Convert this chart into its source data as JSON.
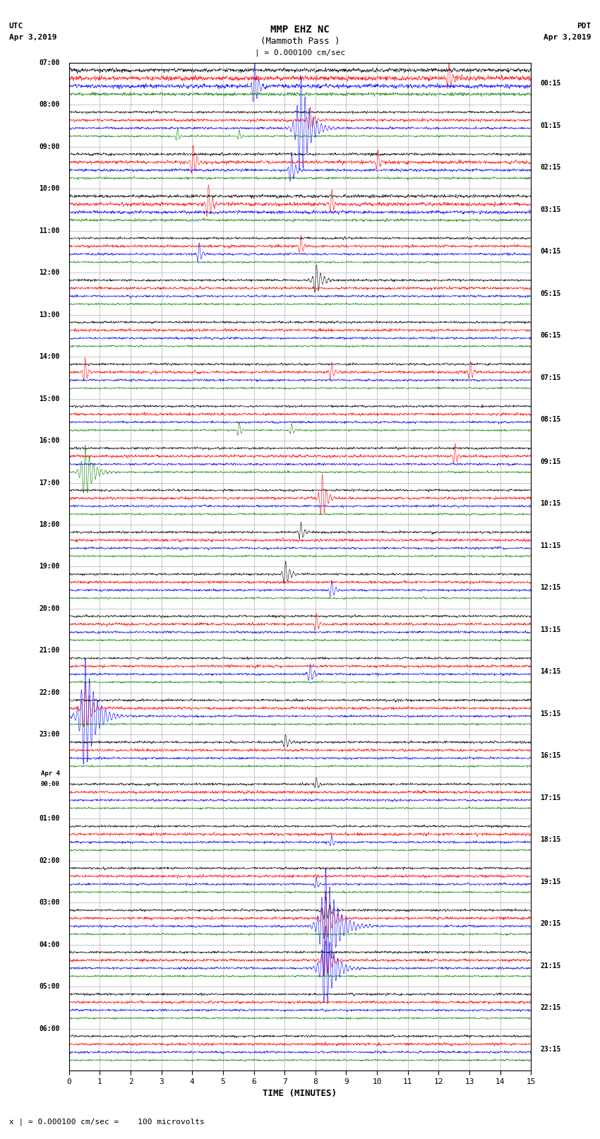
{
  "title_line1": "MMP EHZ NC",
  "title_line2": "(Mammoth Pass )",
  "scale_bar": "| = 0.000100 cm/sec",
  "utc_label": "UTC",
  "utc_date": "Apr 3,2019",
  "pdt_label": "PDT",
  "pdt_date": "Apr 3,2019",
  "footer_note": "x | = 0.000100 cm/sec =    100 microvolts",
  "xlabel": "TIME (MINUTES)",
  "background_color": "#ffffff",
  "trace_colors": [
    "black",
    "red",
    "blue",
    "green"
  ],
  "num_rows": 24,
  "minutes_per_row": 15,
  "x_ticks": [
    0,
    1,
    2,
    3,
    4,
    5,
    6,
    7,
    8,
    9,
    10,
    11,
    12,
    13,
    14,
    15
  ],
  "left_labels_utc": [
    "07:00",
    "08:00",
    "09:00",
    "10:00",
    "11:00",
    "12:00",
    "13:00",
    "14:00",
    "15:00",
    "16:00",
    "17:00",
    "18:00",
    "19:00",
    "20:00",
    "21:00",
    "22:00",
    "23:00",
    "Apr 4\n00:00",
    "01:00",
    "02:00",
    "03:00",
    "04:00",
    "05:00",
    "06:00"
  ],
  "right_labels_pdt": [
    "00:15",
    "01:15",
    "02:15",
    "03:15",
    "04:15",
    "05:15",
    "06:15",
    "07:15",
    "08:15",
    "09:15",
    "10:15",
    "11:15",
    "12:15",
    "13:15",
    "14:15",
    "15:15",
    "16:15",
    "17:15",
    "18:15",
    "19:15",
    "20:15",
    "21:15",
    "22:15",
    "23:15"
  ],
  "grid_color": "#888888",
  "grid_linewidth": 0.4,
  "trace_linewidth": 0.4,
  "noise_base": 0.022,
  "row_noise_scale": [
    1.8,
    1.0,
    1.2,
    1.4,
    1.0,
    1.0,
    1.0,
    1.0,
    1.0,
    1.0,
    1.0,
    1.0,
    1.0,
    1.0,
    1.0,
    1.0,
    1.0,
    1.0,
    1.0,
    1.0,
    1.0,
    1.0,
    1.0,
    1.0
  ],
  "trace_noise_scale": [
    1.0,
    1.2,
    1.0,
    0.8
  ]
}
